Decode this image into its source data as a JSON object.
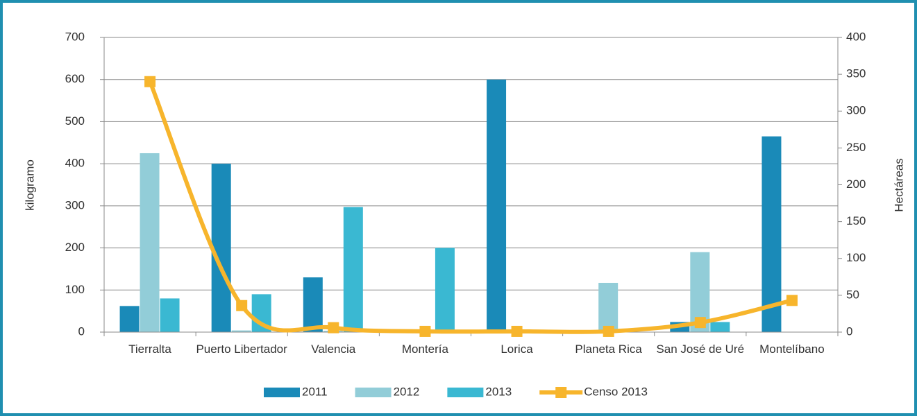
{
  "chart_data": {
    "type": "bar",
    "categories": [
      "Tierralta",
      "Puerto Libertador",
      "Valencia",
      "Montería",
      "Lorica",
      "Planeta Rica",
      "San José de Uré",
      "Montelíbano"
    ],
    "series": [
      {
        "name": "2011",
        "color": "#1a8ab8",
        "values": [
          62,
          400,
          130,
          0,
          600,
          0,
          24,
          465
        ]
      },
      {
        "name": "2012",
        "color": "#92cdd8",
        "values": [
          425,
          4,
          3,
          0,
          0,
          117,
          190,
          0
        ]
      },
      {
        "name": "2013",
        "color": "#3ab8d2",
        "values": [
          80,
          90,
          297,
          200,
          0,
          0,
          24,
          0
        ]
      },
      {
        "name": "Censo 2013",
        "color": "#f7b52c",
        "type": "line",
        "axis": "y2",
        "values": [
          340,
          36,
          6,
          1,
          1,
          1,
          13,
          43
        ]
      }
    ],
    "ylabel": "kilogramo",
    "y2label": "Hectáreas",
    "ylim": [
      0,
      700
    ],
    "yticks": [
      0,
      100,
      200,
      300,
      400,
      500,
      600,
      700
    ],
    "y2lim": [
      0,
      400
    ],
    "y2ticks": [
      0,
      50,
      100,
      150,
      200,
      250,
      300,
      350,
      400
    ],
    "grid": true,
    "legend": "bottom"
  }
}
